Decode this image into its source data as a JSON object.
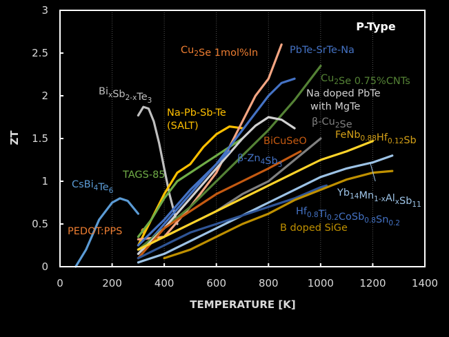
{
  "chart_data": {
    "type": "line",
    "title": "P-Type",
    "xlabel": "TEMPERATURE [K]",
    "ylabel": "ZT",
    "xlim": [
      0,
      1400
    ],
    "ylim": [
      0,
      3
    ],
    "xticks": [
      "0",
      "200",
      "400",
      "600",
      "800",
      "1000",
      "1200",
      "1400"
    ],
    "yticks": [
      "0",
      "0.5",
      "1",
      "1.5",
      "2",
      "2.5",
      "3"
    ],
    "xtick_values": [
      0,
      200,
      400,
      600,
      800,
      1000,
      1200,
      1400
    ],
    "ytick_values": [
      0,
      0.5,
      1,
      1.5,
      2,
      2.5,
      3
    ],
    "grid": "vertical-dotted",
    "background": "#000000",
    "series": [
      {
        "name": "CsBi4Te6",
        "color": "#5b9bd5",
        "x": [
          60,
          100,
          150,
          200,
          230,
          260,
          300
        ],
        "y": [
          0,
          0.2,
          0.55,
          0.75,
          0.8,
          0.77,
          0.62
        ]
      },
      {
        "name": "PEDOT:PPS",
        "color": "#ed7d31",
        "marker": true,
        "x": [
          300
        ],
        "y": [
          0.42
        ]
      },
      {
        "name": "BixSb2-xTe3",
        "color": "#bfbfbf",
        "x": [
          300,
          320,
          340,
          360,
          380,
          400,
          420,
          450
        ],
        "y": [
          1.77,
          1.87,
          1.85,
          1.7,
          1.45,
          1.15,
          0.85,
          0.5
        ]
      },
      {
        "name": "Na-Pb-Sb-Te (SALT)",
        "color": "#ffc000",
        "x": [
          300,
          350,
          400,
          450,
          500,
          550,
          600,
          650,
          700
        ],
        "y": [
          0.25,
          0.55,
          0.85,
          1.1,
          1.2,
          1.4,
          1.55,
          1.64,
          1.62
        ]
      },
      {
        "name": "TAGS-85",
        "color": "#70ad47",
        "x": [
          300,
          350,
          400,
          450,
          500,
          550,
          600,
          650,
          700
        ],
        "y": [
          0.35,
          0.55,
          0.8,
          1.0,
          1.1,
          1.2,
          1.3,
          1.4,
          1.5
        ]
      },
      {
        "name": "Cu2Se 1mol%In",
        "color": "#f4a582",
        "x": [
          300,
          400,
          500,
          600,
          700,
          750,
          800,
          850
        ],
        "y": [
          0.32,
          0.35,
          0.7,
          1.1,
          1.7,
          2.0,
          2.2,
          2.6
        ]
      },
      {
        "name": "PbTe-SrTe-Na",
        "color": "#4472c4",
        "x": [
          300,
          400,
          500,
          600,
          700,
          800,
          850,
          900
        ],
        "y": [
          0.15,
          0.5,
          0.85,
          1.2,
          1.6,
          2.0,
          2.15,
          2.2
        ]
      },
      {
        "name": "Cu2Se 0.75%CNTs",
        "color": "#548235",
        "x": [
          300,
          400,
          500,
          600,
          700,
          800,
          900,
          1000
        ],
        "y": [
          0.2,
          0.45,
          0.7,
          1.0,
          1.3,
          1.6,
          1.95,
          2.35
        ]
      },
      {
        "name": "Na doped PbTe with MgTe",
        "color": "#d0d0d0",
        "x": [
          300,
          400,
          500,
          600,
          700,
          750,
          800,
          850,
          900
        ],
        "y": [
          0.15,
          0.45,
          0.8,
          1.15,
          1.5,
          1.65,
          1.75,
          1.72,
          1.62
        ]
      },
      {
        "name": "β-Cu2Se",
        "color": "#808080",
        "x": [
          300,
          400,
          500,
          600,
          700,
          800,
          900,
          1000
        ],
        "y": [
          0.2,
          0.35,
          0.5,
          0.65,
          0.85,
          1.0,
          1.25,
          1.5
        ]
      },
      {
        "name": "BiCuSeO",
        "color": "#c55a11",
        "x": [
          300,
          400,
          500,
          600,
          700,
          800,
          923
        ],
        "y": [
          0.1,
          0.45,
          0.65,
          0.85,
          1.0,
          1.15,
          1.35
        ]
      },
      {
        "name": "β-Zn4Sb3",
        "color": "#4472c4",
        "x": [
          300,
          400,
          500,
          600,
          650
        ],
        "y": [
          0.25,
          0.55,
          0.9,
          1.2,
          1.35
        ]
      },
      {
        "name": "FeNb0.88Hf0.12Sb",
        "color": "#ffd42a",
        "x": [
          300,
          400,
          500,
          600,
          700,
          800,
          900,
          1000,
          1100,
          1200
        ],
        "y": [
          0.2,
          0.35,
          0.5,
          0.65,
          0.8,
          0.95,
          1.1,
          1.25,
          1.35,
          1.47
        ]
      },
      {
        "name": "Yb14Mn1-xAlxSb11",
        "color": "#9dc3e6",
        "x": [
          300,
          400,
          500,
          600,
          700,
          800,
          900,
          1000,
          1100,
          1200,
          1275
        ],
        "y": [
          0.05,
          0.15,
          0.3,
          0.45,
          0.6,
          0.75,
          0.9,
          1.05,
          1.15,
          1.22,
          1.3
        ]
      },
      {
        "name": "Hf0.8Ti0.2CoSb0.8Sn0.2",
        "color": "#2f5597",
        "x": [
          300,
          400,
          500,
          600,
          700,
          800,
          900,
          1000,
          1023
        ],
        "y": [
          0.1,
          0.25,
          0.4,
          0.5,
          0.6,
          0.7,
          0.8,
          0.93,
          0.95
        ]
      },
      {
        "name": "B doped SiGe",
        "color": "#bf9000",
        "x": [
          400,
          500,
          600,
          700,
          800,
          900,
          1000,
          1100,
          1200,
          1275
        ],
        "y": [
          0.1,
          0.2,
          0.35,
          0.5,
          0.62,
          0.78,
          0.9,
          1.02,
          1.1,
          1.12
        ]
      }
    ],
    "labels": [
      {
        "text": "CsBi",
        "sub": "4",
        "text2": "Te",
        "sub2": "6",
        "color": "#5b9bd5",
        "series": "CsBi4Te6"
      },
      {
        "text": "PEDOT:PPS",
        "color": "#ed7d31",
        "series": "PEDOT:PPS"
      },
      {
        "text": "Bi",
        "sub": "x",
        "text2": "Sb",
        "sub2": "2-x",
        "text3": "Te",
        "sub3": "3",
        "color": "#bfbfbf",
        "series": "BixSb2-xTe3"
      },
      {
        "text": "Na-Pb-Sb-Te",
        "line2": "(SALT)",
        "color": "#ffc000",
        "series": "Na-Pb-Sb-Te (SALT)"
      },
      {
        "text": "TAGS-85",
        "color": "#70ad47",
        "series": "TAGS-85"
      },
      {
        "text": "Cu",
        "sub": "2",
        "text2": "Se 1mol%In",
        "color": "#ed7d31",
        "series": "Cu2Se 1mol%In"
      },
      {
        "text": "PbTe-SrTe-Na",
        "color": "#4472c4",
        "series": "PbTe-SrTe-Na"
      },
      {
        "text": "Cu",
        "sub": "2",
        "text2": "Se 0.75%CNTs",
        "color": "#548235",
        "series": "Cu2Se 0.75%CNTs"
      },
      {
        "text": "Na doped PbTe",
        "line2": "with MgTe",
        "color": "#d0d0d0",
        "series": "Na doped PbTe with MgTe"
      },
      {
        "text": "β-Cu",
        "sub": "2",
        "text2": "Se",
        "color": "#808080",
        "series": "β-Cu2Se"
      },
      {
        "text": "BiCuSeO",
        "color": "#c55a11",
        "series": "BiCuSeO"
      },
      {
        "text": "β-Zn",
        "sub": "4",
        "text2": "Sb",
        "sub2": "3",
        "color": "#4472c4",
        "series": "β-Zn4Sb3"
      },
      {
        "text": "FeNb",
        "sub": "0.88",
        "text2": "Hf",
        "sub2": "0.12",
        "text3": "Sb",
        "color": "#d4a017",
        "series": "FeNb0.88Hf0.12Sb"
      },
      {
        "text": "Yb",
        "sub": "14",
        "text2": "Mn",
        "sub2": "1-x",
        "text3": "Al",
        "sub3": "x",
        "text4": "Sb",
        "sub4": "11",
        "color": "#9dc3e6",
        "series": "Yb14Mn1-xAlxSb11"
      },
      {
        "text": "Hf",
        "sub": "0.8",
        "text2": "Ti",
        "sub2": "0.2",
        "text3": "CoSb",
        "sub3": "0.8",
        "text4": "Sn",
        "sub4": "0.2",
        "color": "#4472c4",
        "series": "Hf0.8Ti0.2CoSb0.8Sn0.2"
      },
      {
        "text": "B doped SiGe",
        "color": "#bf9000",
        "series": "B doped SiGe"
      }
    ]
  }
}
